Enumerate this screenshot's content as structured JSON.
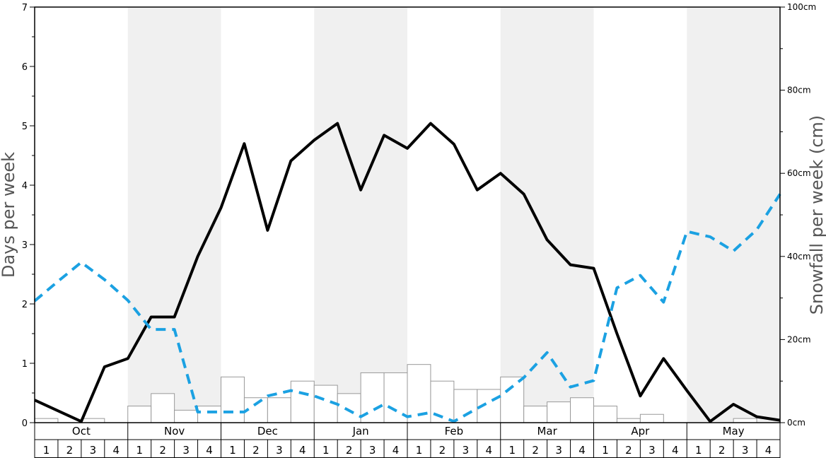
{
  "chart_data": {
    "type": "line",
    "y_left": {
      "label": "Days per week",
      "min": 0,
      "max": 7,
      "ticks": [
        0,
        1,
        2,
        3,
        4,
        5,
        6,
        7
      ]
    },
    "y_right": {
      "label": "Snowfall per week (cm)",
      "min": 0,
      "max": 100,
      "ticks": [
        0,
        20,
        40,
        60,
        80,
        100
      ],
      "tick_labels": [
        "0cm",
        "20cm",
        "40cm",
        "60cm",
        "80cm",
        "100cm"
      ]
    },
    "months": [
      "Oct",
      "Nov",
      "Dec",
      "Jan",
      "Feb",
      "Mar",
      "Apr",
      "May"
    ],
    "weeks": [
      "1",
      "2",
      "3",
      "4"
    ],
    "shaded_months": [
      "Nov",
      "Jan",
      "Mar",
      "May"
    ],
    "colors": {
      "shade": "#f0f0f0",
      "solid_line": "#000000",
      "dashed_line": "#1ba1e2",
      "bar_fill": "#ffffff",
      "bar_stroke": "#999999"
    },
    "series": [
      {
        "axis": "left",
        "style": "solid",
        "values": [
          0.38,
          0.2,
          0.02,
          0.94,
          1.08,
          1.78,
          1.78,
          2.8,
          3.62,
          4.7,
          3.24,
          4.41,
          4.76,
          5.04,
          3.92,
          4.84,
          4.62,
          5.04,
          4.69,
          3.92,
          4.2,
          3.85,
          3.08,
          2.66,
          2.6,
          1.5,
          0.45,
          1.08,
          0.54,
          0.02,
          0.31,
          0.1,
          0.04
        ]
      },
      {
        "axis": "left",
        "style": "dashed",
        "values": [
          2.05,
          2.38,
          2.7,
          2.41,
          2.06,
          1.57,
          1.57,
          0.18,
          0.18,
          0.18,
          0.45,
          0.54,
          0.45,
          0.31,
          0.1,
          0.31,
          0.1,
          0.17,
          0.02,
          0.24,
          0.45,
          0.76,
          1.18,
          0.6,
          0.71,
          2.27,
          2.48,
          2.03,
          3.22,
          3.13,
          2.89,
          3.25,
          3.85
        ]
      },
      {
        "axis": "right",
        "style": "bar",
        "values": [
          1,
          0,
          1,
          0,
          4,
          7,
          3,
          4,
          11,
          6,
          6,
          10,
          9,
          7,
          12,
          12,
          14,
          10,
          8,
          8,
          11,
          4,
          5,
          6,
          4,
          1,
          2,
          0,
          0,
          0,
          1,
          0
        ]
      }
    ]
  }
}
